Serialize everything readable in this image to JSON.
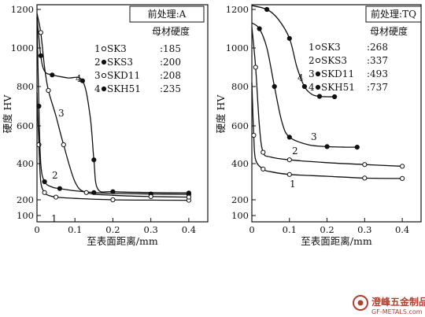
{
  "chart_data": [
    {
      "type": "line",
      "panel": "left",
      "box_title": "前处理:A",
      "box_subtitle": "母材硬度",
      "xlabel": "至表面距离/mm",
      "ylabel": "硬度 HV",
      "xlim": [
        0,
        0.45
      ],
      "ylim": [
        100,
        1250
      ],
      "x_ticks": [
        0,
        0.1,
        0.2,
        0.3,
        0.4
      ],
      "y_ticks": [
        100,
        200,
        400,
        600,
        800,
        1000,
        1200
      ],
      "x_tick_labels": [
        "0",
        "0.1",
        "0.2",
        "0.3",
        "0.4"
      ],
      "y_tick_labels": [
        "100",
        "200",
        "400",
        "600",
        "800",
        "1000",
        "1200"
      ],
      "grid": false,
      "legend_position": "top-right",
      "series": [
        {
          "id": "1",
          "marker": "open",
          "name": "SK3",
          "value": ":185",
          "points": [
            [
              0.0,
              770
            ],
            [
              0.005,
              500
            ],
            [
              0.01,
              300
            ],
            [
              0.02,
              240
            ],
            [
              0.03,
              225
            ],
            [
              0.05,
              215
            ],
            [
              0.1,
              208
            ],
            [
              0.2,
              200
            ],
            [
              0.3,
              198
            ],
            [
              0.4,
              197
            ]
          ]
        },
        {
          "id": "2",
          "marker": "filled",
          "name": "SKS3",
          "value": ":200",
          "points": [
            [
              0.0,
              1160
            ],
            [
              0.005,
              700
            ],
            [
              0.01,
              400
            ],
            [
              0.02,
              300
            ],
            [
              0.04,
              270
            ],
            [
              0.06,
              262
            ],
            [
              0.1,
              250
            ],
            [
              0.15,
              240
            ],
            [
              0.2,
              235
            ],
            [
              0.3,
              232
            ],
            [
              0.4,
              230
            ]
          ]
        },
        {
          "id": "3",
          "marker": "open",
          "name": "SKD11",
          "value": ":208",
          "points": [
            [
              0.0,
              1180
            ],
            [
              0.01,
              1080
            ],
            [
              0.02,
              900
            ],
            [
              0.03,
              780
            ],
            [
              0.05,
              650
            ],
            [
              0.07,
              500
            ],
            [
              0.1,
              300
            ],
            [
              0.13,
              240
            ],
            [
              0.2,
              225
            ],
            [
              0.3,
              218
            ],
            [
              0.4,
              215
            ]
          ]
        },
        {
          "id": "4",
          "marker": "filled",
          "name": "SKH51",
          "value": ":235",
          "points": [
            [
              0.0,
              1160
            ],
            [
              0.01,
              960
            ],
            [
              0.02,
              880
            ],
            [
              0.04,
              860
            ],
            [
              0.08,
              845
            ],
            [
              0.12,
              830
            ],
            [
              0.14,
              650
            ],
            [
              0.15,
              420
            ],
            [
              0.16,
              260
            ],
            [
              0.2,
              245
            ],
            [
              0.3,
              240
            ],
            [
              0.4,
              238
            ]
          ]
        }
      ]
    },
    {
      "type": "line",
      "panel": "right",
      "box_title": "前处理:TQ",
      "box_subtitle": "母材硬度",
      "xlabel": "至表面距离/mm",
      "ylabel": "硬度 HV",
      "xlim": [
        0,
        0.45
      ],
      "ylim": [
        100,
        1250
      ],
      "x_ticks": [
        0,
        0.1,
        0.2,
        0.3,
        0.4
      ],
      "y_ticks": [
        100,
        200,
        400,
        600,
        800,
        1000,
        1200
      ],
      "x_tick_labels": [
        "0",
        "0.1",
        "0.2",
        "0.3",
        "0.4"
      ],
      "y_tick_labels": [
        "100",
        "200",
        "400",
        "600",
        "800",
        "1000",
        "1200"
      ],
      "grid": false,
      "legend_position": "top-right",
      "series": [
        {
          "id": "1",
          "marker": "open",
          "name": "SK3",
          "value": ":268",
          "points": [
            [
              0.0,
              820
            ],
            [
              0.005,
              550
            ],
            [
              0.01,
              420
            ],
            [
              0.03,
              370
            ],
            [
              0.05,
              355
            ],
            [
              0.1,
              340
            ],
            [
              0.2,
              330
            ],
            [
              0.3,
              320
            ],
            [
              0.4,
              318
            ]
          ]
        },
        {
          "id": "2",
          "marker": "open",
          "name": "SKS3",
          "value": ":337",
          "points": [
            [
              0.0,
              1110
            ],
            [
              0.01,
              900
            ],
            [
              0.02,
              600
            ],
            [
              0.03,
              460
            ],
            [
              0.05,
              435
            ],
            [
              0.1,
              420
            ],
            [
              0.2,
              405
            ],
            [
              0.3,
              395
            ],
            [
              0.4,
              385
            ]
          ]
        },
        {
          "id": "3",
          "marker": "filled",
          "name": "SKD11",
          "value": ":493",
          "points": [
            [
              0.0,
              1130
            ],
            [
              0.02,
              1100
            ],
            [
              0.04,
              1000
            ],
            [
              0.06,
              800
            ],
            [
              0.08,
              620
            ],
            [
              0.1,
              540
            ],
            [
              0.15,
              500
            ],
            [
              0.2,
              490
            ],
            [
              0.25,
              487
            ],
            [
              0.28,
              487
            ]
          ]
        },
        {
          "id": "4",
          "marker": "filled",
          "name": "SKH51",
          "value": ":737",
          "points": [
            [
              0.0,
              1220
            ],
            [
              0.04,
              1200
            ],
            [
              0.07,
              1150
            ],
            [
              0.1,
              1050
            ],
            [
              0.12,
              900
            ],
            [
              0.14,
              800
            ],
            [
              0.16,
              760
            ],
            [
              0.18,
              750
            ],
            [
              0.2,
              748
            ],
            [
              0.22,
              748
            ]
          ]
        }
      ]
    }
  ],
  "watermark": {
    "text": "澄峰五金制品",
    "url": "GF-METALS.com"
  }
}
